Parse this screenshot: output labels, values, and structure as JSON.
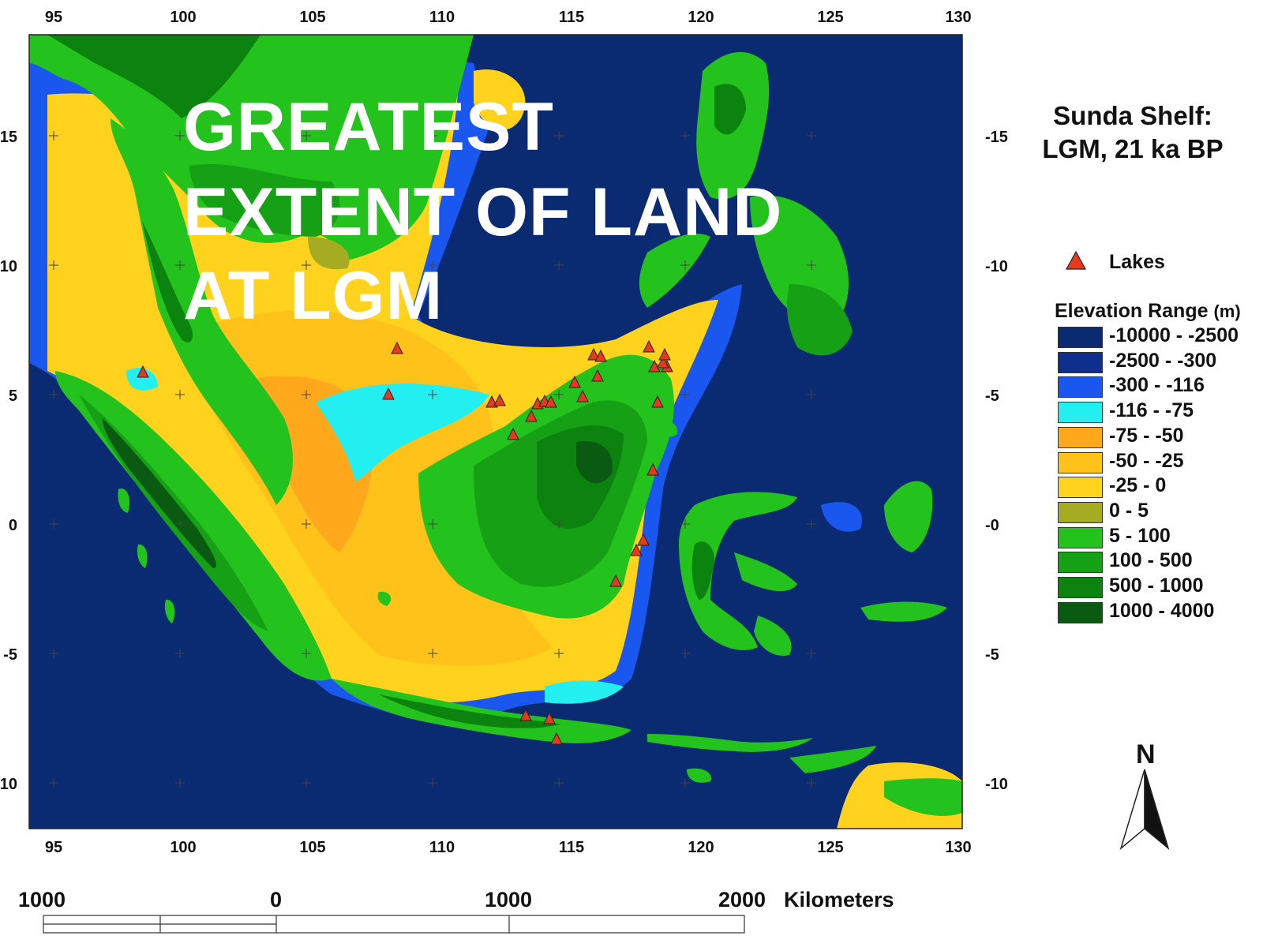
{
  "title": {
    "line1": "Sunda Shelf:",
    "line2": "LGM, 21 ka BP"
  },
  "overlay_text": [
    "GREATEST",
    "EXTENT OF LAND",
    "AT LGM"
  ],
  "axes": {
    "lon_ticks": [
      "95",
      "100",
      "105",
      "110",
      "115",
      "120",
      "125",
      "130"
    ],
    "lat_ticks_left": [
      "15",
      "10",
      "5",
      "0",
      "-5",
      "10"
    ],
    "lat_ticks_right": [
      "-15",
      "-10",
      "-5",
      "-0",
      "-5",
      "-10"
    ]
  },
  "legend": {
    "lakes_label": "Lakes",
    "lakes_color": "#e8391f",
    "elevation_title": "Elevation Range",
    "elevation_unit": "(m)",
    "classes": [
      {
        "label": "-10000 - -2500",
        "color": "#0a2a72"
      },
      {
        "label": "-2500 - -300",
        "color": "#0f2f8f"
      },
      {
        "label": "-300 - -116",
        "color": "#1957ee"
      },
      {
        "label": "-116 - -75",
        "color": "#23eef0"
      },
      {
        "label": "-75 - -50",
        "color": "#ffa81c"
      },
      {
        "label": "-50 - -25",
        "color": "#ffc21a"
      },
      {
        "label": "-25 - 0",
        "color": "#ffd21e"
      },
      {
        "label": "0 - 5",
        "color": "#a6ac22"
      },
      {
        "label": "5 - 100",
        "color": "#23c21d"
      },
      {
        "label": "100 - 500",
        "color": "#15a015"
      },
      {
        "label": "500 - 1000",
        "color": "#0c820f"
      },
      {
        "label": "1000 - 4000",
        "color": "#0a5a12"
      }
    ]
  },
  "scale_bar": {
    "labels": [
      "1000",
      "0",
      "1000",
      "2000"
    ],
    "unit": "Kilometers"
  },
  "north_arrow": {
    "label": "N",
    "icon": "north-arrow-icon"
  }
}
